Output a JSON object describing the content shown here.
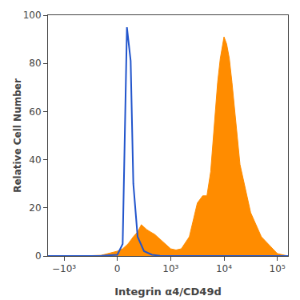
{
  "chart_data": {
    "type": "line",
    "xlabel": "Integrin α4/CD49d",
    "ylabel": "Relative Cell Number",
    "xlim": [
      -1.3,
      3.2
    ],
    "xticks": [
      {
        "value": -1.0,
        "label": "−10³"
      },
      {
        "value": 0.0,
        "label": "0"
      },
      {
        "value": 1.0,
        "label": "10³"
      },
      {
        "value": 2.0,
        "label": "10⁴"
      },
      {
        "value": 3.0,
        "label": "10⁵"
      }
    ],
    "ylim": [
      0,
      100
    ],
    "yticks": [
      0,
      20,
      40,
      60,
      80,
      100
    ],
    "grid": false,
    "series": [
      {
        "type": "area",
        "color": "#FF8C00",
        "line_style": "solid",
        "x": [
          -1.3,
          -1.0,
          -0.7,
          -0.3,
          0.0,
          0.1,
          0.2,
          0.3,
          0.38,
          0.45,
          0.5,
          0.55,
          0.62,
          0.7,
          0.8,
          0.9,
          1.0,
          1.1,
          1.2,
          1.35,
          1.5,
          1.6,
          1.68,
          1.75,
          1.82,
          1.88,
          1.93,
          1.97,
          2.0,
          2.05,
          2.1,
          2.15,
          2.2,
          2.3,
          2.5,
          2.7,
          3.0,
          3.2
        ],
        "values": [
          0,
          0,
          0,
          0.3,
          2,
          3,
          5,
          8,
          10,
          13,
          12,
          11,
          10,
          9,
          7,
          5,
          3,
          2.5,
          3,
          8,
          22,
          25,
          25,
          35,
          55,
          72,
          82,
          88,
          91,
          88,
          82,
          72,
          60,
          38,
          18,
          8,
          1,
          0
        ]
      },
      {
        "type": "line",
        "color": "#2255cc",
        "line_style": "solid",
        "x": [
          -1.3,
          -1.0,
          -0.7,
          -0.3,
          0.0,
          0.1,
          0.18,
          0.25,
          0.3,
          0.38,
          0.5,
          0.65,
          0.8,
          1.0,
          1.3,
          1.6,
          2.0,
          2.5,
          3.0,
          3.2
        ],
        "values": [
          0,
          0,
          0,
          0.1,
          0.5,
          5,
          95,
          81,
          30,
          8,
          2,
          0.5,
          0.1,
          0,
          0,
          0,
          0,
          0,
          0,
          0
        ]
      }
    ]
  }
}
